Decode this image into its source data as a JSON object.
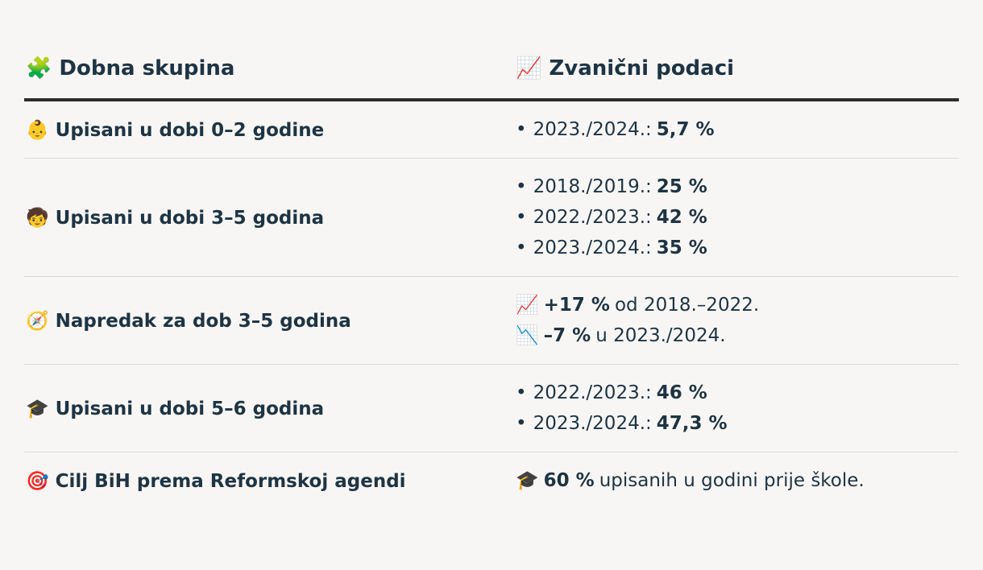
{
  "table": {
    "header": [
      "🧩 Dobna skupina",
      "📈 Zvanični podaci"
    ],
    "rows": [
      {
        "label": "👶 Upisani u dobi 0–2 godine",
        "style": "bullets",
        "lines": [
          {
            "text": "2023./2024.:",
            "bold": "5,7 %"
          }
        ]
      },
      {
        "label": "🧒 Upisani u dobi 3–5 godina",
        "style": "bullets",
        "lines": [
          {
            "text": "2018./2019.:",
            "bold": "25 %"
          },
          {
            "text": "2022./2023.:",
            "bold": "42 %"
          },
          {
            "text": "2023./2024.:",
            "bold": "35 %"
          }
        ]
      },
      {
        "label": "🧭 Napredak za dob 3–5 godina",
        "style": "plain",
        "lines": [
          {
            "icon": "📈",
            "bold": "+17 %",
            "text": "od 2018.–2022."
          },
          {
            "icon": "📉",
            "bold": "–7 %",
            "text": "u 2023./2024."
          }
        ]
      },
      {
        "label": "🎓 Upisani u dobi 5–6 godina",
        "style": "bullets",
        "lines": [
          {
            "text": "2022./2023.:",
            "bold": "46 %"
          },
          {
            "text": "2023./2024.:",
            "bold": "47,3 %"
          }
        ]
      },
      {
        "label": "🎯 Cilj BiH prema Reformskoj agendi",
        "style": "plain",
        "lines": [
          {
            "icon": "🎓",
            "bold": "60 %",
            "text": "upisanih u godini prije škole."
          }
        ]
      }
    ]
  }
}
